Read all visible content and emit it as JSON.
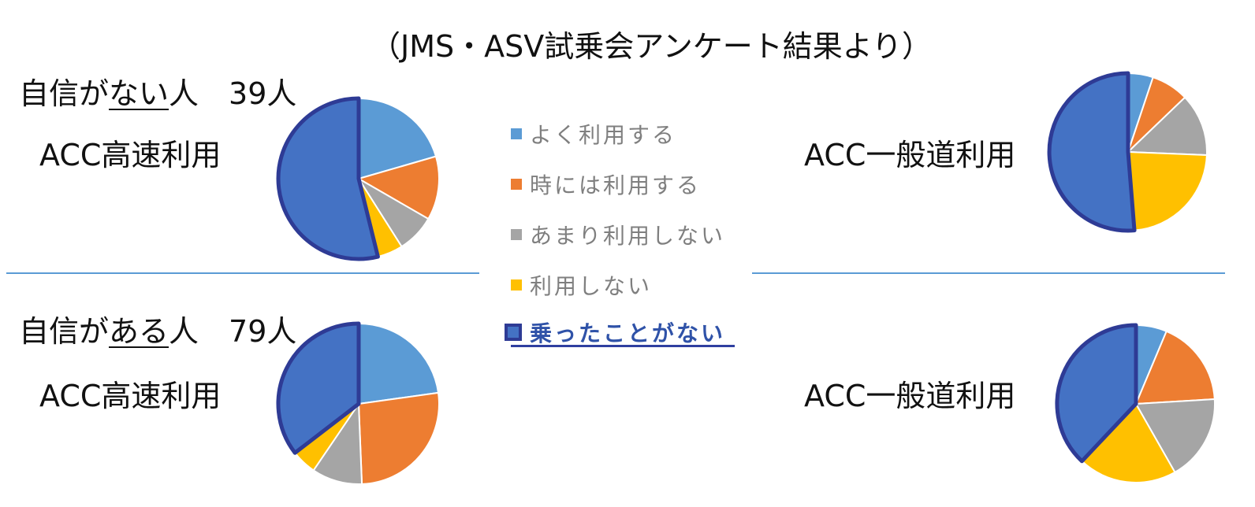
{
  "title": "（JMS・ASV試乗会アンケート結果より）",
  "groups": [
    {
      "head_pre": "自信が",
      "head_u": "ない",
      "head_post": "人　39人",
      "left_label": "ACC高速利用",
      "right_label": "ACC一般道利用"
    },
    {
      "head_pre": "自信が",
      "head_u": "ある",
      "head_post": "人　79人",
      "left_label": "ACC高速利用",
      "right_label": "ACC一般道利用"
    }
  ],
  "legend": [
    "よく利用する",
    "時には利用する",
    "あまり利用しない",
    "利用しない",
    "乗ったことがない"
  ],
  "colors": {
    "よく利用する": "#5b9bd5",
    "時には利用する": "#ed7d31",
    "あまり利用しない": "#a5a5a5",
    "利用しない": "#ffc000",
    "乗ったことがない": "#4472c4",
    "highlight_outline": "#2e3b95",
    "divider": "#5b9bd5"
  },
  "chart_data": [
    {
      "type": "pie",
      "group": "自信がない人 39人",
      "label": "ACC高速利用",
      "categories": [
        "よく利用する",
        "時には利用する",
        "あまり利用しない",
        "利用しない",
        "乗ったことがない"
      ],
      "values": [
        8,
        5,
        3,
        2,
        21
      ]
    },
    {
      "type": "pie",
      "group": "自信がない人 39人",
      "label": "ACC一般道利用",
      "categories": [
        "よく利用する",
        "時には利用する",
        "あまり利用しない",
        "利用しない",
        "乗ったことがない"
      ],
      "values": [
        2,
        3,
        5,
        9,
        20
      ]
    },
    {
      "type": "pie",
      "group": "自信がある人 79人",
      "label": "ACC高速利用",
      "categories": [
        "よく利用する",
        "時には利用する",
        "あまり利用しない",
        "利用しない",
        "乗ったことがない"
      ],
      "values": [
        18,
        21,
        8,
        4,
        28
      ]
    },
    {
      "type": "pie",
      "group": "自信がある人 79人",
      "label": "ACC一般道利用",
      "categories": [
        "よく利用する",
        "時には利用する",
        "あまり利用しない",
        "利用しない",
        "乗ったことがない"
      ],
      "values": [
        5,
        14,
        14,
        16,
        30
      ]
    }
  ]
}
